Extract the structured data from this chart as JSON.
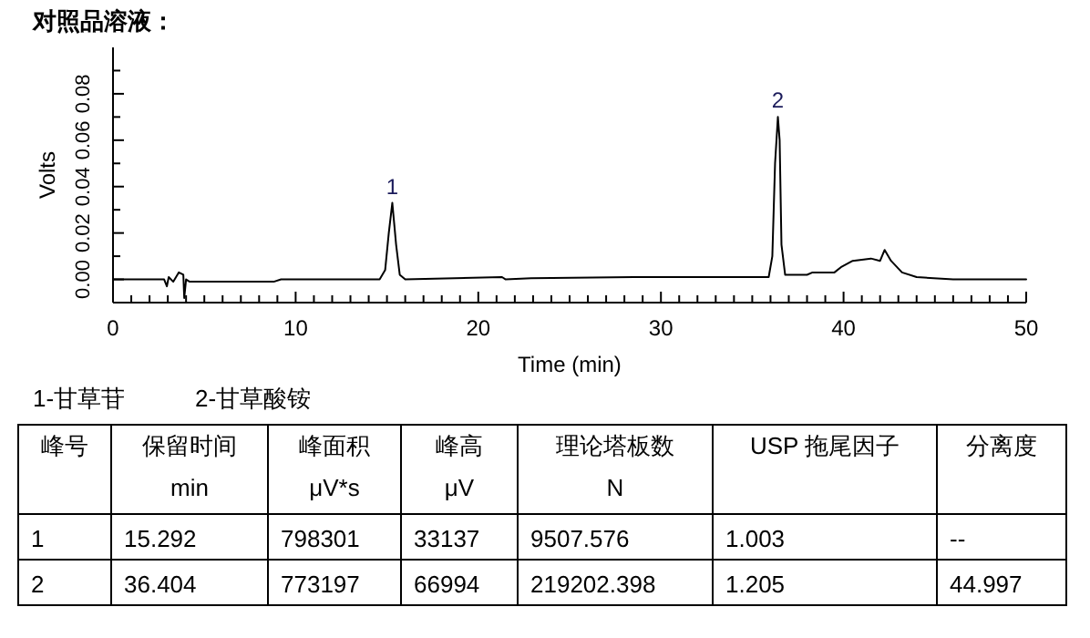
{
  "chart_data": {
    "type": "line",
    "title": "对照品溶液：",
    "xlabel": "Time (min)",
    "ylabel": "Volts",
    "xlim": [
      0,
      50
    ],
    "ylim": [
      -0.01,
      0.1
    ],
    "xticks": [
      {
        "value": 0,
        "label": "0"
      },
      {
        "value": 1,
        "label": null
      },
      {
        "value": 2,
        "label": null
      },
      {
        "value": 3,
        "label": null
      },
      {
        "value": 4,
        "label": null
      },
      {
        "value": 5,
        "label": null
      },
      {
        "value": 6,
        "label": null
      },
      {
        "value": 7,
        "label": null
      },
      {
        "value": 8,
        "label": null
      },
      {
        "value": 9,
        "label": null
      },
      {
        "value": 10,
        "label": "10"
      },
      {
        "value": 11,
        "label": null
      },
      {
        "value": 12,
        "label": null
      },
      {
        "value": 13,
        "label": null
      },
      {
        "value": 14,
        "label": null
      },
      {
        "value": 15,
        "label": null
      },
      {
        "value": 16,
        "label": null
      },
      {
        "value": 17,
        "label": null
      },
      {
        "value": 18,
        "label": null
      },
      {
        "value": 19,
        "label": null
      },
      {
        "value": 20,
        "label": "20"
      },
      {
        "value": 21,
        "label": null
      },
      {
        "value": 22,
        "label": null
      },
      {
        "value": 23,
        "label": null
      },
      {
        "value": 24,
        "label": null
      },
      {
        "value": 25,
        "label": null
      },
      {
        "value": 26,
        "label": null
      },
      {
        "value": 27,
        "label": null
      },
      {
        "value": 28,
        "label": null
      },
      {
        "value": 29,
        "label": null
      },
      {
        "value": 30,
        "label": "30"
      },
      {
        "value": 31,
        "label": null
      },
      {
        "value": 32,
        "label": null
      },
      {
        "value": 33,
        "label": null
      },
      {
        "value": 34,
        "label": null
      },
      {
        "value": 35,
        "label": null
      },
      {
        "value": 36,
        "label": null
      },
      {
        "value": 37,
        "label": null
      },
      {
        "value": 38,
        "label": null
      },
      {
        "value": 39,
        "label": null
      },
      {
        "value": 40,
        "label": "40"
      },
      {
        "value": 41,
        "label": null
      },
      {
        "value": 42,
        "label": null
      },
      {
        "value": 43,
        "label": null
      },
      {
        "value": 44,
        "label": null
      },
      {
        "value": 45,
        "label": null
      },
      {
        "value": 46,
        "label": null
      },
      {
        "value": 47,
        "label": null
      },
      {
        "value": 48,
        "label": null
      },
      {
        "value": 49,
        "label": null
      },
      {
        "value": 50,
        "label": "50"
      }
    ],
    "yticks": [
      {
        "value": 0,
        "label": "0.00"
      },
      {
        "value": 0.01,
        "label": null
      },
      {
        "value": 0.02,
        "label": "0.02"
      },
      {
        "value": 0.03,
        "label": null
      },
      {
        "value": 0.04,
        "label": "0.04"
      },
      {
        "value": 0.05,
        "label": null
      },
      {
        "value": 0.06,
        "label": "0.06"
      },
      {
        "value": 0.07,
        "label": null
      },
      {
        "value": 0.08,
        "label": "0.08"
      },
      {
        "value": 0.09,
        "label": null
      }
    ],
    "grid": false,
    "marker": "none",
    "line_style": "solid",
    "series": [
      {
        "color": "#000000",
        "x": [
          0,
          2.8,
          2.95,
          3.05,
          3.3,
          3.6,
          3.85,
          3.9,
          4.0,
          4.2,
          8.8,
          9.2,
          14.6,
          14.9,
          15.1,
          15.292,
          15.5,
          15.7,
          16.0,
          21.3,
          21.5,
          22.9,
          28.5,
          30,
          35.9,
          36.1,
          36.25,
          36.404,
          36.5,
          36.6,
          36.8,
          38.0,
          38.3,
          39.5,
          39.9,
          40.5,
          41.5,
          42.0,
          42.25,
          42.6,
          43.2,
          44,
          46,
          50
        ],
        "values": [
          0,
          0,
          -0.003,
          0.001,
          -0.001,
          0.003,
          0.002,
          -0.008,
          0,
          -0.001,
          -0.001,
          0,
          0,
          0.004,
          0.02,
          0.033,
          0.015,
          0.002,
          0,
          0.001,
          0,
          0.0005,
          0.001,
          0.001,
          0.001,
          0.01,
          0.05,
          0.07,
          0.06,
          0.015,
          0.002,
          0.002,
          0.003,
          0.003,
          0.0055,
          0.008,
          0.009,
          0.008,
          0.0127,
          0.008,
          0.003,
          0.001,
          0,
          0
        ]
      }
    ],
    "annotations": [
      {
        "text": "1",
        "x": 15.292,
        "y": 0.033
      },
      {
        "text": "2",
        "x": 36.404,
        "y": 0.07
      },
      "1-甘草苷",
      "2-甘草酸铵",
      "峰号",
      "保留时间\nmin",
      "峰面积\nμV*s",
      "峰高\nμV",
      "理论塔板数\nN",
      "USP 拖尾因子",
      "分离度",
      "1",
      "15.292",
      "798301",
      "33137",
      "9507.576",
      "1.003",
      "--",
      "2",
      "36.404",
      "773197",
      "66994",
      "219202.398",
      "1.205",
      "44.997"
    ]
  }
}
